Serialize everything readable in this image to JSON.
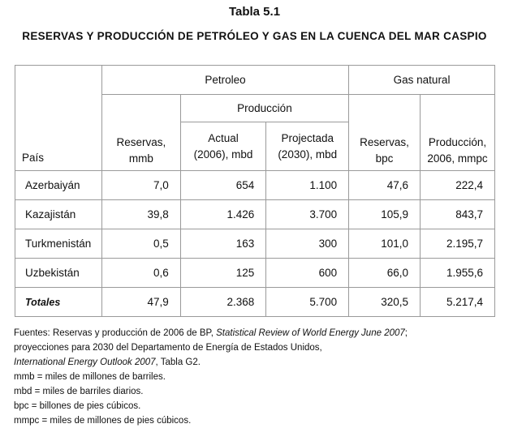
{
  "title": "Tabla 5.1",
  "subtitle": "RESERVAS Y PRODUCCIÓN DE PETRÓLEO Y GAS EN LA CUENCA DEL MAR CASPIO",
  "table": {
    "header": {
      "pais": "País",
      "petroleo": "Petroleo",
      "gas": "Gas natural",
      "produccion": "Producción",
      "reservas_l1": "Reservas,",
      "reservas_l2": "mmb",
      "actual_l1": "Actual",
      "actual_l2": "(2006), mbd",
      "proj_l1": "Projectada",
      "proj_l2": "(2030), mbd",
      "gasres_l1": "Reservas,",
      "gasres_l2": "bpc",
      "gasprod_l1": "Producción,",
      "gasprod_l2": "2006, mmpc"
    },
    "rows": [
      {
        "country": "Azerbaiyán",
        "reservas": "7,0",
        "actual": "654",
        "proyectada": "1.100",
        "gas_reservas": "47,6",
        "gas_produccion": "222,4"
      },
      {
        "country": "Kazajistán",
        "reservas": "39,8",
        "actual": "1.426",
        "proyectada": "3.700",
        "gas_reservas": "105,9",
        "gas_produccion": "843,7"
      },
      {
        "country": "Turkmenistán",
        "reservas": "0,5",
        "actual": "163",
        "proyectada": "300",
        "gas_reservas": "101,0",
        "gas_produccion": "2.195,7"
      },
      {
        "country": "Uzbekistán",
        "reservas": "0,6",
        "actual": "125",
        "proyectada": "600",
        "gas_reservas": "66,0",
        "gas_produccion": "1.955,6"
      }
    ],
    "totals": {
      "label": "Totales",
      "reservas": "47,9",
      "actual": "2.368",
      "proyectada": "5.700",
      "gas_reservas": "320,5",
      "gas_produccion": "5.217,4"
    }
  },
  "notes": {
    "line1_a": "Fuentes: Reservas y producción de 2006 de BP, ",
    "line1_b": "Statistical Review of World Energy June 2007",
    "line1_c": ";",
    "line2": "proyecciones para 2030 del Departamento de Energía de Estados Unidos,",
    "line3_a": "International Energy Outlook 2007",
    "line3_b": ", Tabla G2.",
    "mmb": "mmb = miles de millones de barriles.",
    "mbd": "mbd = miles de barriles diarios.",
    "bpc": "bpc = billones de pies cúbicos.",
    "mmpc": "mmpc = miles de millones de pies cúbicos."
  }
}
